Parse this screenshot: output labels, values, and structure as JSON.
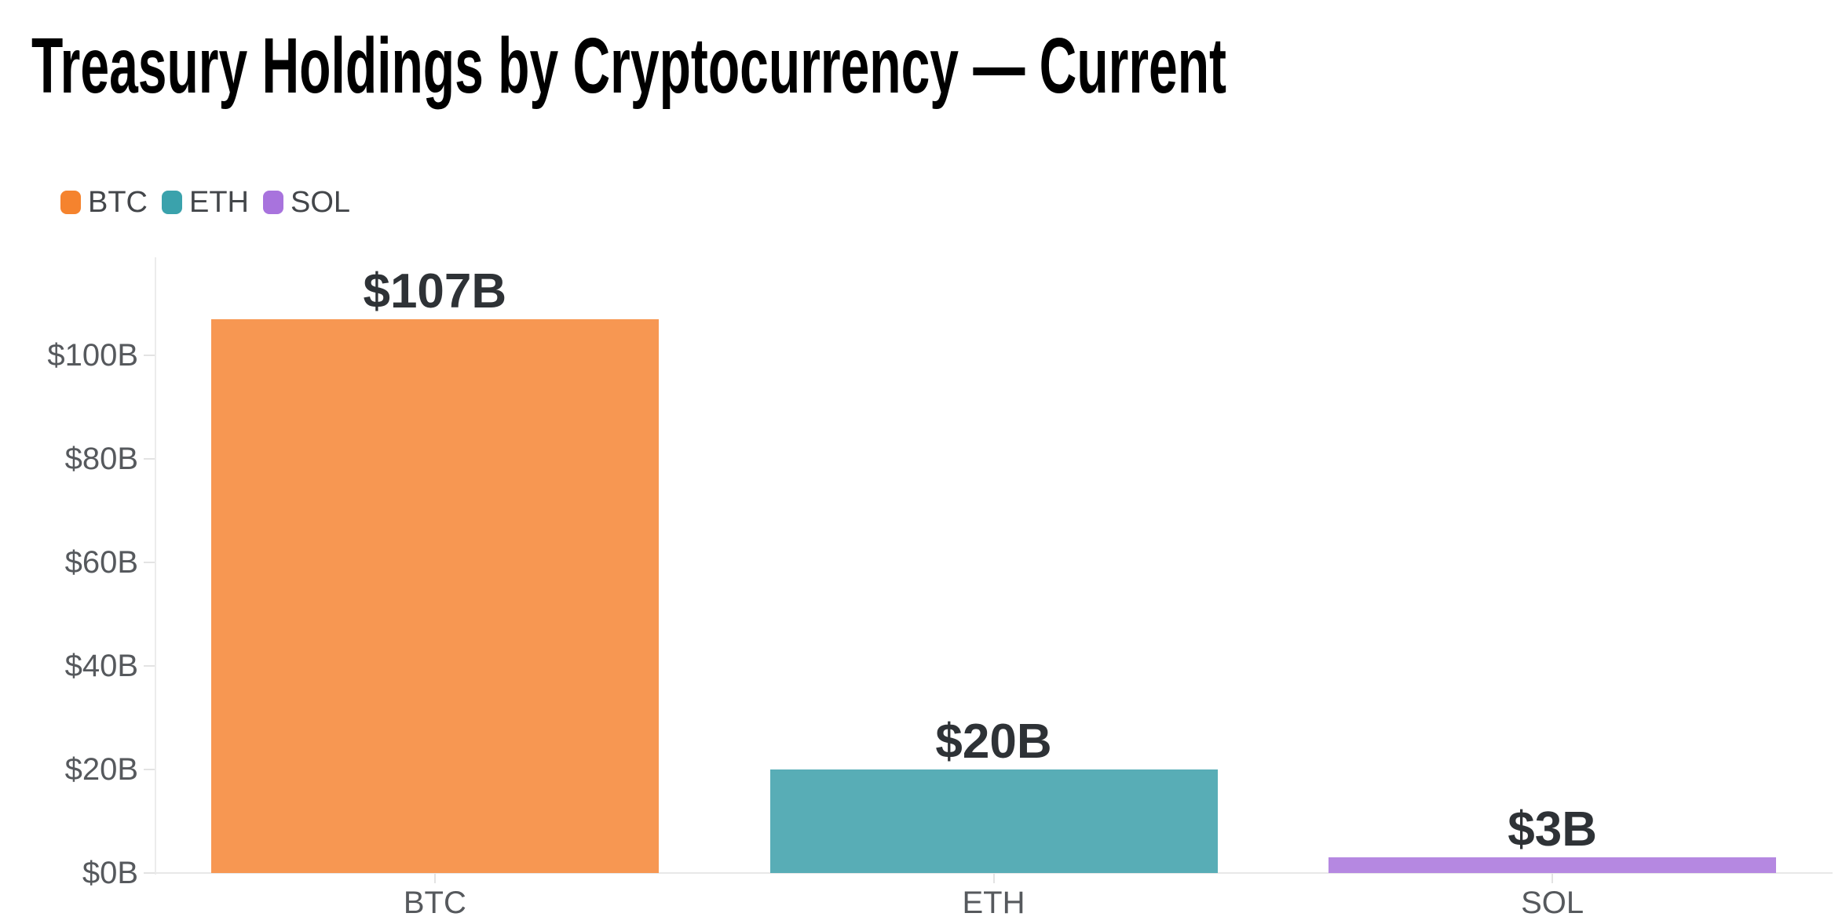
{
  "title": "Treasury Holdings by Cryptocurrency — Current",
  "chart_data": {
    "type": "bar",
    "title": "Treasury Holdings by Cryptocurrency — Current",
    "categories": [
      "BTC",
      "ETH",
      "SOL"
    ],
    "values": [
      107,
      20,
      3
    ],
    "value_labels": [
      "$107B",
      "$20B",
      "$3B"
    ],
    "series": [
      {
        "name": "BTC",
        "legend_color": "#f5832e",
        "bar_color": "#f79752"
      },
      {
        "name": "ETH",
        "legend_color": "#3aa2ac",
        "bar_color": "#58adb6"
      },
      {
        "name": "SOL",
        "legend_color": "#a873dd",
        "bar_color": "#b588e1"
      }
    ],
    "y_axis": {
      "tick_labels": [
        "$0B",
        "$20B",
        "$40B",
        "$60B",
        "$80B",
        "$100B"
      ],
      "tick_values": [
        0,
        20,
        40,
        60,
        80,
        100
      ],
      "range": [
        0,
        119
      ],
      "unit_format": "$ billions"
    },
    "x_axis": {
      "tick_labels": [
        "BTC",
        "ETH",
        "SOL"
      ]
    },
    "grid": false,
    "legend_position": "top-left",
    "background_color": "#ffffff",
    "axis_line_color": "#ececec",
    "tick_label_color": "#56595d",
    "value_label_color": "#2e3236",
    "title_color": "#000000"
  }
}
